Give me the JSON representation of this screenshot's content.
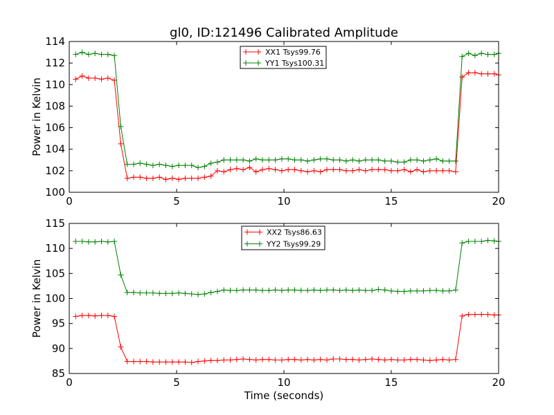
{
  "chart_data": [
    {
      "type": "line",
      "title": "gl0, ID:121496 Calibrated Amplitude",
      "xlabel": "",
      "ylabel": "Power in Kelvin",
      "xlim": [
        0,
        20
      ],
      "ylim": [
        100,
        114
      ],
      "xticks": [
        "0",
        "5",
        "10",
        "15",
        "20"
      ],
      "yticks": [
        "100",
        "102",
        "104",
        "106",
        "108",
        "110",
        "112",
        "114"
      ],
      "grid": false,
      "legend_position": "top-center",
      "series": [
        {
          "name": "XX1 Tsys99.76",
          "color": "#ff0000",
          "x": [
            0.3,
            0.6,
            0.9,
            1.2,
            1.5,
            1.8,
            2.1,
            2.4,
            2.7,
            3.0,
            3.3,
            3.6,
            3.9,
            4.2,
            4.5,
            4.8,
            5.1,
            5.4,
            5.7,
            6.0,
            6.3,
            6.6,
            6.9,
            7.2,
            7.5,
            7.8,
            8.1,
            8.4,
            8.7,
            9.0,
            9.3,
            9.6,
            9.9,
            10.2,
            10.5,
            10.8,
            11.1,
            11.4,
            11.7,
            12.0,
            12.3,
            12.6,
            12.9,
            13.2,
            13.5,
            13.8,
            14.1,
            14.4,
            14.7,
            15.0,
            15.3,
            15.6,
            15.9,
            16.2,
            16.5,
            16.8,
            17.1,
            17.4,
            17.7,
            18.0,
            18.3,
            18.6,
            18.9,
            19.2,
            19.5,
            19.8,
            20.0
          ],
          "values": [
            110.5,
            110.8,
            110.6,
            110.6,
            110.5,
            110.6,
            110.4,
            104.5,
            101.3,
            101.4,
            101.4,
            101.3,
            101.3,
            101.4,
            101.2,
            101.3,
            101.2,
            101.3,
            101.3,
            101.3,
            101.4,
            101.5,
            102.0,
            101.9,
            102.1,
            102.2,
            102.1,
            102.3,
            101.9,
            102.1,
            102.2,
            102.1,
            102.0,
            102.1,
            102.1,
            102.0,
            101.9,
            102.0,
            101.9,
            102.1,
            102.1,
            102.1,
            102.0,
            102.0,
            102.1,
            102.0,
            102.1,
            102.1,
            102.1,
            102.0,
            102.0,
            102.1,
            101.9,
            102.1,
            101.9,
            102.0,
            102.0,
            102.0,
            102.0,
            101.9,
            110.7,
            111.1,
            111.1,
            111.0,
            111.0,
            111.0,
            110.9
          ]
        },
        {
          "name": "YY1 Tsys100.31",
          "color": "#008000",
          "x": [
            0.3,
            0.6,
            0.9,
            1.2,
            1.5,
            1.8,
            2.1,
            2.4,
            2.7,
            3.0,
            3.3,
            3.6,
            3.9,
            4.2,
            4.5,
            4.8,
            5.1,
            5.4,
            5.7,
            6.0,
            6.3,
            6.6,
            6.9,
            7.2,
            7.5,
            7.8,
            8.1,
            8.4,
            8.7,
            9.0,
            9.3,
            9.6,
            9.9,
            10.2,
            10.5,
            10.8,
            11.1,
            11.4,
            11.7,
            12.0,
            12.3,
            12.6,
            12.9,
            13.2,
            13.5,
            13.8,
            14.1,
            14.4,
            14.7,
            15.0,
            15.3,
            15.6,
            15.9,
            16.2,
            16.5,
            16.8,
            17.1,
            17.4,
            17.7,
            18.0,
            18.3,
            18.6,
            18.9,
            19.2,
            19.5,
            19.8,
            20.0
          ],
          "values": [
            112.8,
            113.0,
            112.8,
            112.9,
            112.8,
            112.8,
            112.7,
            106.1,
            102.6,
            102.6,
            102.7,
            102.6,
            102.5,
            102.6,
            102.5,
            102.4,
            102.5,
            102.5,
            102.5,
            102.3,
            102.4,
            102.7,
            102.8,
            103.0,
            103.0,
            103.0,
            103.0,
            102.9,
            103.1,
            103.0,
            103.0,
            103.0,
            103.1,
            103.1,
            103.0,
            103.0,
            102.9,
            103.0,
            103.1,
            103.1,
            103.0,
            103.0,
            102.9,
            103.0,
            102.9,
            103.0,
            103.0,
            103.0,
            102.9,
            102.9,
            102.8,
            102.8,
            103.0,
            103.0,
            102.9,
            103.0,
            103.1,
            102.9,
            102.9,
            102.9,
            112.6,
            112.9,
            112.7,
            112.9,
            112.8,
            112.8,
            112.9
          ]
        }
      ]
    },
    {
      "type": "line",
      "title": "",
      "xlabel": "Time (seconds)",
      "ylabel": "Power in Kelvin",
      "xlim": [
        0,
        20
      ],
      "ylim": [
        85,
        115
      ],
      "xticks": [
        "0",
        "5",
        "10",
        "15",
        "20"
      ],
      "yticks": [
        "85",
        "90",
        "95",
        "100",
        "105",
        "110",
        "115"
      ],
      "grid": false,
      "legend_position": "top-center",
      "series": [
        {
          "name": "XX2 Tsys86.63",
          "color": "#ff0000",
          "x": [
            0.3,
            0.6,
            0.9,
            1.2,
            1.5,
            1.8,
            2.1,
            2.4,
            2.7,
            3.0,
            3.3,
            3.6,
            3.9,
            4.2,
            4.5,
            4.8,
            5.1,
            5.4,
            5.7,
            6.0,
            6.3,
            6.6,
            6.9,
            7.2,
            7.5,
            7.8,
            8.1,
            8.4,
            8.7,
            9.0,
            9.3,
            9.6,
            9.9,
            10.2,
            10.5,
            10.8,
            11.1,
            11.4,
            11.7,
            12.0,
            12.3,
            12.6,
            12.9,
            13.2,
            13.5,
            13.8,
            14.1,
            14.4,
            14.7,
            15.0,
            15.3,
            15.6,
            15.9,
            16.2,
            16.5,
            16.8,
            17.1,
            17.4,
            17.7,
            18.0,
            18.3,
            18.6,
            18.9,
            19.2,
            19.5,
            19.8,
            20.0
          ],
          "values": [
            96.4,
            96.6,
            96.6,
            96.5,
            96.6,
            96.6,
            96.4,
            90.3,
            87.4,
            87.4,
            87.4,
            87.4,
            87.3,
            87.3,
            87.3,
            87.3,
            87.3,
            87.3,
            87.2,
            87.4,
            87.5,
            87.6,
            87.6,
            87.7,
            87.7,
            87.8,
            87.9,
            87.8,
            87.7,
            87.8,
            87.8,
            87.7,
            87.7,
            87.8,
            87.8,
            87.7,
            87.8,
            87.7,
            87.8,
            87.7,
            87.9,
            87.9,
            87.8,
            87.8,
            87.7,
            87.8,
            87.9,
            87.8,
            87.7,
            87.8,
            87.7,
            87.7,
            87.8,
            87.8,
            87.7,
            87.6,
            87.7,
            87.8,
            87.7,
            87.8,
            96.5,
            96.8,
            96.8,
            96.8,
            96.8,
            96.7,
            96.7
          ]
        },
        {
          "name": "YY2 Tsys99.29",
          "color": "#008000",
          "x": [
            0.3,
            0.6,
            0.9,
            1.2,
            1.5,
            1.8,
            2.1,
            2.4,
            2.7,
            3.0,
            3.3,
            3.6,
            3.9,
            4.2,
            4.5,
            4.8,
            5.1,
            5.4,
            5.7,
            6.0,
            6.3,
            6.6,
            6.9,
            7.2,
            7.5,
            7.8,
            8.1,
            8.4,
            8.7,
            9.0,
            9.3,
            9.6,
            9.9,
            10.2,
            10.5,
            10.8,
            11.1,
            11.4,
            11.7,
            12.0,
            12.3,
            12.6,
            12.9,
            13.2,
            13.5,
            13.8,
            14.1,
            14.4,
            14.7,
            15.0,
            15.3,
            15.6,
            15.9,
            16.2,
            16.5,
            16.8,
            17.1,
            17.4,
            17.7,
            18.0,
            18.3,
            18.6,
            18.9,
            19.2,
            19.5,
            19.8,
            20.0
          ],
          "values": [
            111.4,
            111.4,
            111.3,
            111.3,
            111.4,
            111.3,
            111.4,
            104.7,
            101.2,
            101.2,
            101.1,
            101.1,
            101.1,
            101.0,
            101.0,
            101.0,
            101.1,
            101.0,
            100.9,
            100.8,
            100.9,
            101.2,
            101.4,
            101.7,
            101.6,
            101.6,
            101.7,
            101.7,
            101.7,
            101.6,
            101.6,
            101.7,
            101.6,
            101.7,
            101.7,
            101.6,
            101.6,
            101.7,
            101.6,
            101.7,
            101.7,
            101.6,
            101.7,
            101.6,
            101.7,
            101.6,
            101.6,
            101.8,
            101.7,
            101.5,
            101.4,
            101.4,
            101.5,
            101.5,
            101.5,
            101.6,
            101.6,
            101.5,
            101.5,
            101.7,
            111.1,
            111.4,
            111.4,
            111.4,
            111.6,
            111.5,
            111.4
          ]
        }
      ]
    }
  ]
}
